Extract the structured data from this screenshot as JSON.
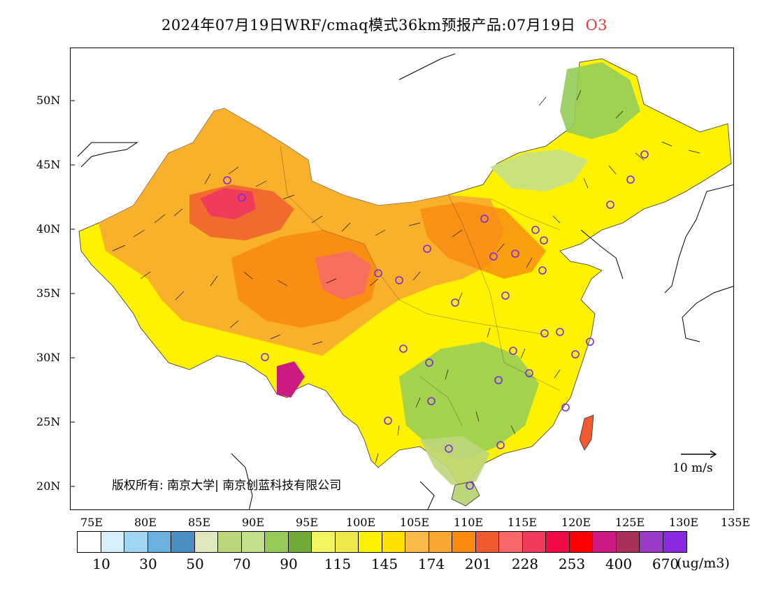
{
  "title": {
    "main": "2024年07月19日WRF/cmaq模式36km预报产品:07月19日",
    "species": "O3"
  },
  "map": {
    "lat_labels": [
      "50N",
      "45N",
      "40N",
      "35N",
      "30N",
      "25N",
      "20N"
    ],
    "lon_labels": [
      "75E",
      "80E",
      "85E",
      "90E",
      "95E",
      "100E",
      "105E",
      "110E",
      "115E",
      "120E",
      "125E",
      "130E",
      "135E"
    ],
    "copyright": "版权所有: 南京大学| 南京创蓝科技有限公司",
    "wind_reference": "10 m/s"
  },
  "colorbar": {
    "colors": [
      "#ffffff",
      "#d6effa",
      "#a0d6f2",
      "#6bb1de",
      "#4a8fc4",
      "#dfe8bf",
      "#bcd67c",
      "#c3e08a",
      "#95cc59",
      "#72aa3a",
      "#f2f560",
      "#f0e54a",
      "#fff200",
      "#ffe000",
      "#f8b84a",
      "#f8a830",
      "#f88a10",
      "#f05a30",
      "#f86868",
      "#f03c5a",
      "#f00a46",
      "#ff0000",
      "#cc1a84",
      "#a8305a",
      "#9a3ac8",
      "#8a2ae0"
    ],
    "labels": [
      "10",
      "30",
      "50",
      "70",
      "90",
      "115",
      "145",
      "174",
      "201",
      "228",
      "253",
      "400",
      "670"
    ],
    "unit": "(ug/m3)"
  }
}
